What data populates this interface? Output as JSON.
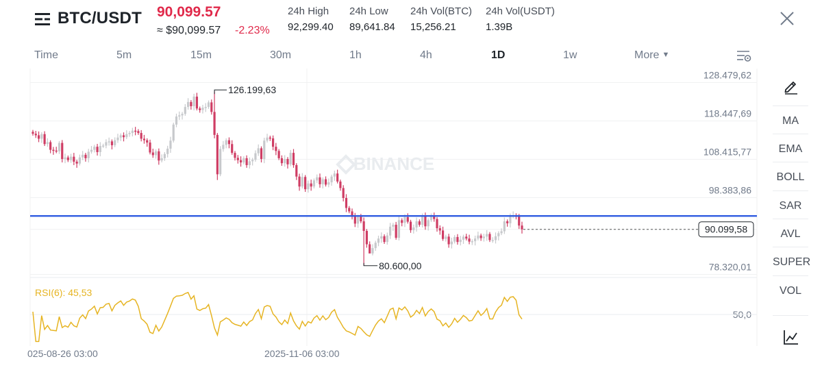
{
  "header": {
    "pair": "BTC/USDT",
    "price": "90,099.57",
    "price_usd": "≈ $90,099.57",
    "change": "-2.23%",
    "stats": [
      {
        "label": "24h High",
        "value": "92,299.40"
      },
      {
        "label": "24h Low",
        "value": "89,641.84"
      },
      {
        "label": "24h Vol(BTC)",
        "value": "15,256.21"
      },
      {
        "label": "24h Vol(USDT)",
        "value": "1.39B"
      }
    ]
  },
  "tabs": [
    "Time",
    "5m",
    "15m",
    "30m",
    "1h",
    "4h",
    "1D",
    "1w",
    "More"
  ],
  "active_tab": "1D",
  "indicators": [
    "MA",
    "EMA",
    "BOLL",
    "SAR",
    "AVL",
    "SUPER",
    "VOL"
  ],
  "icons": {
    "menu": "menu-icon",
    "close": "close-icon",
    "settings": "chart-settings-icon",
    "draw": "pen-icon",
    "chart_type": "line-chart-icon"
  },
  "colors": {
    "up": "#c7c9cc",
    "down": "#cf3d64",
    "price_red": "#e0294a",
    "hline": "#2f5be0",
    "rsi": "#e6b422",
    "watermark": "#e9ecef"
  },
  "chart_data": {
    "type": "candlestick",
    "watermark": "BINANCE",
    "y_axis_labels": [
      "128.479,62",
      "118.447,69",
      "108.415,77",
      "98.383,86",
      "78.320,01"
    ],
    "ylim": [
      78320.01,
      128479.62
    ],
    "current_price_label": "90.099,58",
    "current_price": 90099.58,
    "high_marker": {
      "label": "126.199,63",
      "value": 126199.63
    },
    "low_marker": {
      "label": "80.600,00",
      "value": 80600.0
    },
    "horizontal_line": 93600,
    "x_axis_labels": [
      "025-08-26 03:00",
      "2025-11-06 03:00"
    ],
    "close": [
      115100,
      114700,
      113800,
      115000,
      112400,
      112900,
      110900,
      110700,
      110500,
      112700,
      108500,
      108900,
      108200,
      109100,
      107800,
      107300,
      108900,
      109600,
      108700,
      110400,
      110900,
      111700,
      110300,
      111900,
      112000,
      112900,
      113100,
      112100,
      113400,
      114100,
      114700,
      114200,
      115000,
      115300,
      115900,
      115800,
      115300,
      113800,
      113400,
      112800,
      110200,
      109500,
      110500,
      108100,
      108700,
      109800,
      111200,
      113300,
      117500,
      119600,
      119900,
      120300,
      122100,
      123400,
      122300,
      124800,
      121700,
      121300,
      121900,
      122100,
      123300,
      120800,
      114800,
      104500,
      111100,
      112200,
      113400,
      112400,
      110100,
      108800,
      108200,
      107600,
      108700,
      106900,
      107900,
      108300,
      110000,
      111300,
      108500,
      113300,
      114100,
      113900,
      111700,
      110600,
      108700,
      107400,
      108500,
      107100,
      110100,
      106900,
      103900,
      101300,
      103800,
      100600,
      102100,
      101300,
      102900,
      103700,
      101900,
      103200,
      101800,
      102400,
      103900,
      104700,
      102600,
      100900,
      98300,
      95700,
      94800,
      93400,
      91600,
      93400,
      92200,
      89700,
      86200,
      83800,
      85200,
      86600,
      87700,
      88300,
      86800,
      88500,
      90800,
      91300,
      87900,
      92500,
      91800,
      93300,
      92100,
      89900,
      90600,
      92200,
      91300,
      93500,
      90900,
      92500,
      93500,
      92800,
      90400,
      89800,
      87600,
      88200,
      86200,
      86900,
      88100,
      86800,
      87400,
      88200,
      87700,
      86900,
      87000,
      87700,
      88500,
      87800,
      88200,
      88900,
      87300,
      87300,
      88300,
      89100,
      89600,
      92200,
      91700,
      93500,
      93800,
      93400,
      91100,
      90100
    ],
    "rsi": {
      "label": "RSI(6): 45,53",
      "period": 6,
      "value": 45.53,
      "level_label": "50,0",
      "level": 50.0
    }
  }
}
